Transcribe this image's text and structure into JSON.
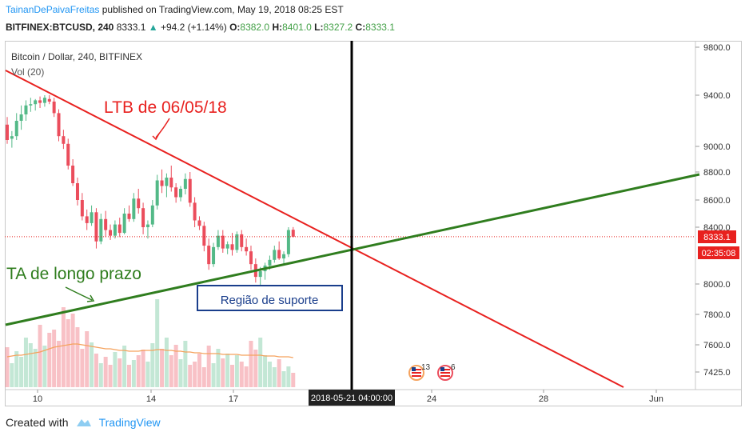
{
  "header": {
    "author": "TainanDePaivaFreitas",
    "published_text": "published on TradingView.com, May 19, 2018 08:25 EST",
    "symbol": "BITFINEX:BTCUSD, 240",
    "last": "8333.1",
    "change": "+94.2 (+1.14%)",
    "open_label": "O:",
    "open": "8382.0",
    "high_label": "H:",
    "high": "8401.0",
    "low_label": "L:",
    "low": "8327.2",
    "close_label": "C:",
    "close": "8333.1"
  },
  "legend": {
    "title": "Bitcoin / Dollar, 240, BITFINEX",
    "volume": "Vol (20)"
  },
  "annotations": {
    "ltb": "LTB de 06/05/18",
    "ta": "TA de longo prazo",
    "support": "Região de suporte"
  },
  "price_axis": {
    "ticks": [
      "9800.0",
      "9400.0",
      "9000.0",
      "8800.0",
      "8600.0",
      "8400.0",
      "8000.0",
      "7800.0",
      "7600.0",
      "7425.0"
    ],
    "last_price_tag": "8333.1",
    "countdown_tag": "02:35:08"
  },
  "time_axis": {
    "ticks": [
      "10",
      "14",
      "17",
      "24",
      "28",
      "Jun"
    ],
    "crosshair_label": "2018-05-21 04:00:00"
  },
  "events": [
    {
      "icon": "us-flag-icon",
      "count": "13"
    },
    {
      "icon": "us-flag-icon",
      "count": "6"
    }
  ],
  "colors": {
    "up": "#53b987",
    "down": "#eb4d5c",
    "ltb_line": "#e8211f",
    "ta_line": "#2f7d1e",
    "ma_line": "#f5a25d",
    "support_box": "#1a3e8c",
    "price_tag": "#e8211f"
  },
  "footer": {
    "created_with": "Created with",
    "brand": "TradingView"
  },
  "chart_data": {
    "type": "candlestick",
    "title": "Bitcoin / Dollar, 240, BITFINEX",
    "x_unit": "4h bars from 2018-05-08",
    "ylim": [
      7380,
      9850
    ],
    "candles": [
      [
        9170,
        9230,
        9020,
        9050
      ],
      [
        9060,
        9120,
        8990,
        9080
      ],
      [
        9080,
        9260,
        9050,
        9200
      ],
      [
        9200,
        9320,
        9130,
        9250
      ],
      [
        9250,
        9360,
        9200,
        9320
      ],
      [
        9320,
        9380,
        9270,
        9330
      ],
      [
        9330,
        9370,
        9280,
        9360
      ],
      [
        9360,
        9390,
        9300,
        9340
      ],
      [
        9340,
        9400,
        9310,
        9380
      ],
      [
        9370,
        9400,
        9330,
        9350
      ],
      [
        9350,
        9380,
        9230,
        9260
      ],
      [
        9260,
        9290,
        9040,
        9080
      ],
      [
        9080,
        9130,
        8980,
        9020
      ],
      [
        9020,
        9060,
        8820,
        8850
      ],
      [
        8850,
        8900,
        8700,
        8720
      ],
      [
        8720,
        8760,
        8560,
        8600
      ],
      [
        8600,
        8650,
        8450,
        8480
      ],
      [
        8480,
        8530,
        8380,
        8430
      ],
      [
        8430,
        8560,
        8410,
        8510
      ],
      [
        8510,
        8540,
        8250,
        8300
      ],
      [
        8300,
        8500,
        8280,
        8460
      ],
      [
        8460,
        8520,
        8330,
        8380
      ],
      [
        8380,
        8420,
        8310,
        8340
      ],
      [
        8340,
        8450,
        8320,
        8420
      ],
      [
        8420,
        8470,
        8330,
        8360
      ],
      [
        8360,
        8540,
        8350,
        8500
      ],
      [
        8500,
        8560,
        8440,
        8460
      ],
      [
        8460,
        8650,
        8440,
        8610
      ],
      [
        8610,
        8680,
        8500,
        8540
      ],
      [
        8540,
        8580,
        8350,
        8400
      ],
      [
        8400,
        8450,
        8320,
        8420
      ],
      [
        8420,
        8600,
        8400,
        8560
      ],
      [
        8560,
        8780,
        8530,
        8740
      ],
      [
        8740,
        8820,
        8650,
        8700
      ],
      [
        8700,
        8790,
        8620,
        8760
      ],
      [
        8760,
        8850,
        8660,
        8690
      ],
      [
        8690,
        8720,
        8580,
        8620
      ],
      [
        8620,
        8700,
        8590,
        8680
      ],
      [
        8680,
        8790,
        8640,
        8750
      ],
      [
        8750,
        8800,
        8550,
        8580
      ],
      [
        8580,
        8620,
        8400,
        8450
      ],
      [
        8450,
        8480,
        8380,
        8410
      ],
      [
        8410,
        8440,
        8230,
        8270
      ],
      [
        8270,
        8320,
        8100,
        8140
      ],
      [
        8140,
        8290,
        8120,
        8260
      ],
      [
        8260,
        8380,
        8240,
        8340
      ],
      [
        8340,
        8380,
        8220,
        8250
      ],
      [
        8250,
        8300,
        8210,
        8280
      ],
      [
        8280,
        8360,
        8200,
        8240
      ],
      [
        8240,
        8370,
        8220,
        8350
      ],
      [
        8350,
        8380,
        8230,
        8260
      ],
      [
        8260,
        8320,
        8200,
        8230
      ],
      [
        8230,
        8270,
        8100,
        8140
      ],
      [
        8140,
        8180,
        8010,
        8050
      ],
      [
        8050,
        8120,
        7960,
        8090
      ],
      [
        8090,
        8150,
        8030,
        8130
      ],
      [
        8130,
        8200,
        8100,
        8170
      ],
      [
        8170,
        8270,
        8150,
        8240
      ],
      [
        8240,
        8300,
        8170,
        8180
      ],
      [
        8180,
        8230,
        8140,
        8210
      ],
      [
        8210,
        8400,
        8190,
        8380
      ],
      [
        8382,
        8401,
        8327.2,
        8333.1
      ]
    ],
    "volume": [
      50,
      30,
      45,
      38,
      62,
      55,
      48,
      78,
      52,
      68,
      72,
      58,
      100,
      85,
      92,
      75,
      48,
      70,
      56,
      42,
      30,
      38,
      28,
      44,
      36,
      52,
      28,
      34,
      40,
      47,
      32,
      55,
      110,
      48,
      62,
      40,
      53,
      35,
      58,
      28,
      32,
      42,
      25,
      52,
      30,
      48,
      36,
      42,
      28,
      40,
      32,
      26,
      58,
      47,
      62,
      40,
      32,
      25,
      35,
      20,
      26,
      18
    ],
    "volume_ma": [
      38,
      39,
      40,
      40,
      41,
      42,
      43,
      44,
      46,
      48,
      50,
      51,
      52,
      53,
      54,
      54,
      53,
      52,
      51,
      50,
      49,
      48,
      48,
      47,
      46,
      46,
      45,
      45,
      45,
      46,
      46,
      46,
      47,
      47,
      46,
      46,
      45,
      45,
      44,
      44,
      43,
      43,
      42,
      42,
      42,
      42,
      41,
      41,
      41,
      41,
      40,
      40,
      40,
      40,
      40,
      39,
      39,
      39,
      38,
      38,
      38,
      37
    ],
    "lines": [
      {
        "label": "LTB de 06/05/18",
        "from": [
          0,
          9600
        ],
        "to": [
          110,
          7415
        ]
      },
      {
        "label": "TA de longo prazo",
        "from": [
          0,
          7720
        ],
        "to": [
          110,
          8800
        ]
      }
    ]
  }
}
